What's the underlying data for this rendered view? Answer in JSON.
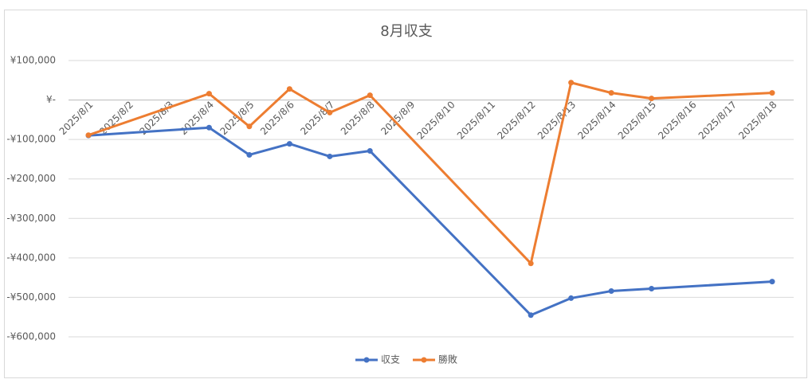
{
  "chart_data": {
    "type": "line",
    "title": "8月収支",
    "x": [
      "2025/8/1",
      "2025/8/4",
      "2025/8/5",
      "2025/8/6",
      "2025/8/7",
      "2025/8/8",
      "2025/8/12",
      "2025/8/13",
      "2025/8/14",
      "2025/8/15",
      "2025/8/18"
    ],
    "xticks": [
      "2025/8/1",
      "2025/8/2",
      "2025/8/3",
      "2025/8/4",
      "2025/8/5",
      "2025/8/6",
      "2025/8/7",
      "2025/8/8",
      "2025/8/9",
      "2025/8/10",
      "2025/8/11",
      "2025/8/12",
      "2025/8/13",
      "2025/8/14",
      "2025/8/15",
      "2025/8/16",
      "2025/8/17",
      "2025/8/18"
    ],
    "series": [
      {
        "name": "収支",
        "color": "#4472c4",
        "values": [
          -90000,
          -70000,
          -139000,
          -111000,
          -143000,
          -129000,
          -545000,
          -502000,
          -484000,
          -478000,
          -460000
        ]
      },
      {
        "name": "勝敗",
        "color": "#ed7d31",
        "values": [
          -89000,
          16000,
          -67000,
          28000,
          -32000,
          12000,
          -414000,
          44000,
          18000,
          4000,
          18000
        ]
      }
    ],
    "ylim": [
      -600000,
      100000
    ],
    "yticks": [
      {
        "value": 100000,
        "label": "¥100,000"
      },
      {
        "value": 0,
        "label": "¥-"
      },
      {
        "value": -100000,
        "label": "-¥100,000"
      },
      {
        "value": -200000,
        "label": "-¥200,000"
      },
      {
        "value": -300000,
        "label": "-¥300,000"
      },
      {
        "value": -400000,
        "label": "-¥400,000"
      },
      {
        "value": -500000,
        "label": "-¥500,000"
      },
      {
        "value": -600000,
        "label": "-¥600,000"
      }
    ],
    "grid": true,
    "legend": "bottom"
  }
}
